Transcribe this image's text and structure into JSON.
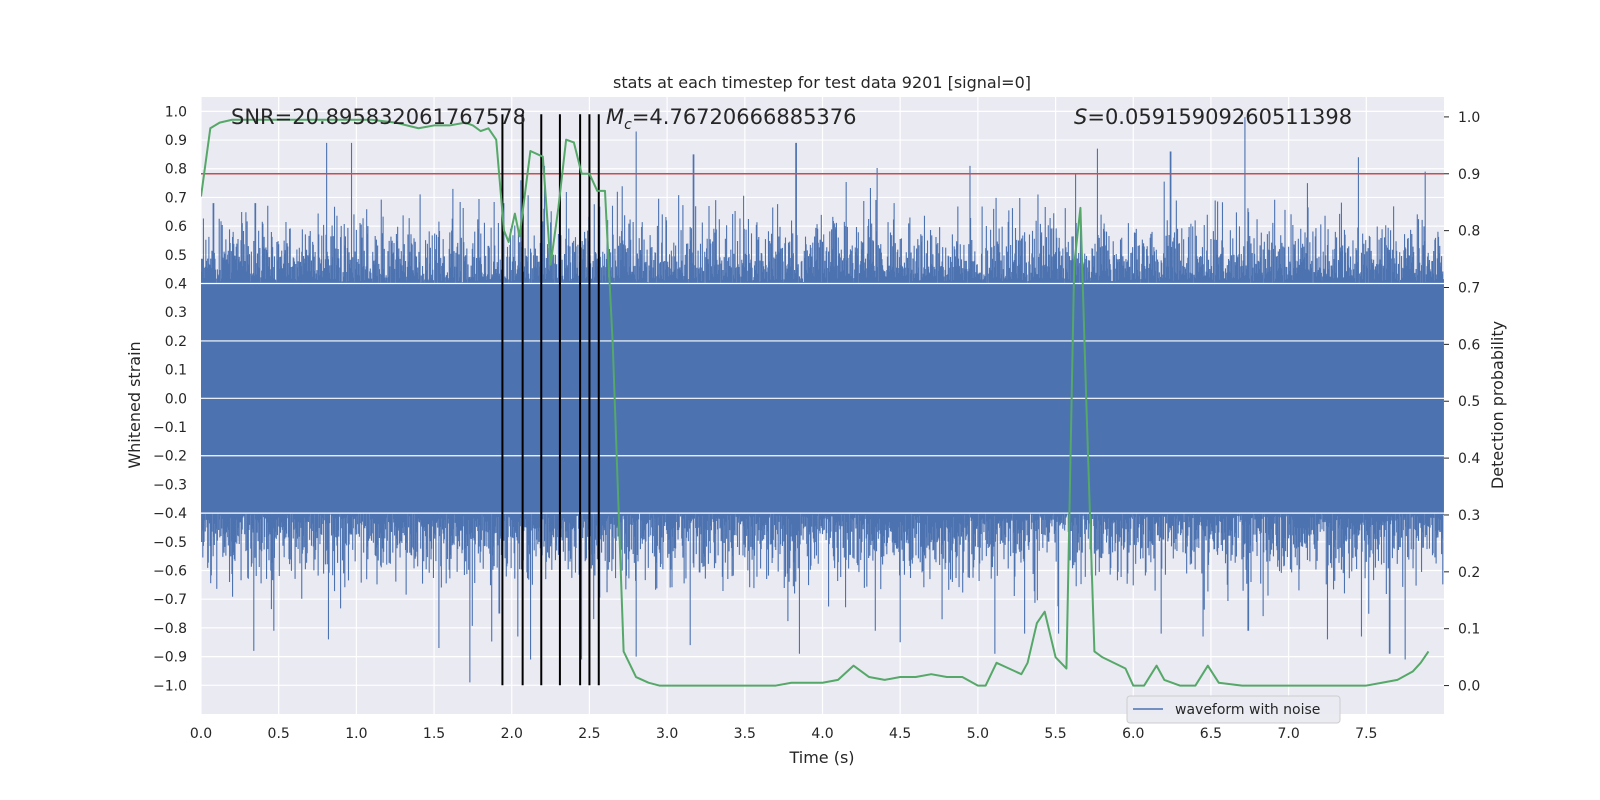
{
  "chart_data": {
    "type": "line",
    "title": "stats at each timestep for test data 9201 [signal=0]",
    "xlabel": "Time (s)",
    "ylabel": "Whitened strain",
    "y2label": "Detection probability",
    "xlim": [
      0.0,
      8.0
    ],
    "ylim": [
      -1.1,
      1.05
    ],
    "y2lim": [
      -0.05,
      1.035
    ],
    "x_ticks": [
      "0.0",
      "0.5",
      "1.0",
      "1.5",
      "2.0",
      "2.5",
      "3.0",
      "3.5",
      "4.0",
      "4.5",
      "5.0",
      "5.5",
      "6.0",
      "6.5",
      "7.0",
      "7.5"
    ],
    "y_ticks": [
      "1.0",
      "0.9",
      "0.8",
      "0.7",
      "0.6",
      "0.5",
      "0.4",
      "0.3",
      "0.2",
      "0.1",
      "0.0",
      "-0.1",
      "-0.2",
      "-0.3",
      "-0.4",
      "-0.5",
      "-0.6",
      "-0.7",
      "-0.8",
      "-0.9",
      "-1.0"
    ],
    "y2_ticks": [
      "1.0",
      "0.9",
      "0.8",
      "0.7",
      "0.6",
      "0.5",
      "0.4",
      "0.3",
      "0.2",
      "0.1",
      "0.0"
    ],
    "annotations": {
      "snr": "SNR=20.895832061767578",
      "mc_symbol": "M",
      "mc_sub": "c",
      "mc_value": "=4.76720666885376",
      "s_symbol": "S",
      "s_value": "=0.05915909260511398"
    },
    "legend": {
      "label": "waveform with noise",
      "location": "lower-right"
    },
    "threshold": {
      "axis": "right",
      "value": 0.9,
      "color": "#c44e52"
    },
    "event_lines": [
      1.94,
      2.07,
      2.19,
      2.31,
      2.44,
      2.5,
      2.56
    ],
    "event_line_range": [
      -1.0,
      0.99
    ],
    "waveform": {
      "name": "waveform with noise",
      "color": "#4c72b0",
      "n_samples": 2048,
      "core_amplitude": 0.4,
      "noise_scale": 0.11,
      "seed": 9201,
      "peaks_pos": [
        [
          0.08,
          0.68
        ],
        [
          0.35,
          0.68
        ],
        [
          0.81,
          0.89
        ],
        [
          0.97,
          0.89
        ],
        [
          1.62,
          0.73
        ],
        [
          1.95,
          0.68
        ],
        [
          2.06,
          0.76
        ],
        [
          2.21,
          0.81
        ],
        [
          2.68,
          0.72
        ],
        [
          2.8,
          0.93
        ],
        [
          3.17,
          0.85
        ],
        [
          3.83,
          0.89
        ],
        [
          4.95,
          0.81
        ],
        [
          5.63,
          0.78
        ],
        [
          5.77,
          0.87
        ],
        [
          6.24,
          0.86
        ],
        [
          6.72,
          0.98
        ],
        [
          7.12,
          0.75
        ],
        [
          7.45,
          0.84
        ],
        [
          7.88,
          0.79
        ]
      ],
      "peaks_neg": [
        [
          0.34,
          -0.88
        ],
        [
          0.47,
          -0.81
        ],
        [
          0.82,
          -0.84
        ],
        [
          1.53,
          -0.87
        ],
        [
          1.73,
          -0.99
        ],
        [
          1.92,
          -0.75
        ],
        [
          2.04,
          -0.83
        ],
        [
          2.12,
          -0.91
        ],
        [
          2.45,
          -0.91
        ],
        [
          2.8,
          -0.9
        ],
        [
          3.15,
          -0.86
        ],
        [
          3.85,
          -0.89
        ],
        [
          4.34,
          -0.81
        ],
        [
          4.5,
          -0.85
        ],
        [
          4.77,
          -0.77
        ],
        [
          5.11,
          -0.89
        ],
        [
          5.3,
          -0.82
        ],
        [
          5.52,
          -0.82
        ],
        [
          6.18,
          -0.82
        ],
        [
          6.45,
          -0.83
        ],
        [
          6.74,
          -0.81
        ],
        [
          7.25,
          -0.84
        ],
        [
          7.47,
          -0.83
        ],
        [
          7.65,
          -0.89
        ],
        [
          7.75,
          -0.91
        ]
      ]
    },
    "probability": {
      "name": "detection probability",
      "color": "#55a868",
      "x": [
        0.0,
        0.06,
        0.12,
        0.2,
        0.3,
        0.5,
        0.7,
        0.9,
        1.0,
        1.1,
        1.25,
        1.4,
        1.5,
        1.6,
        1.7,
        1.75,
        1.8,
        1.85,
        1.9,
        1.95,
        1.98,
        2.02,
        2.05,
        2.12,
        2.2,
        2.25,
        2.3,
        2.35,
        2.4,
        2.45,
        2.5,
        2.55,
        2.6,
        2.65,
        2.72,
        2.8,
        2.88,
        2.95,
        3.1,
        3.3,
        3.5,
        3.7,
        3.8,
        3.9,
        4.0,
        4.1,
        4.2,
        4.3,
        4.4,
        4.5,
        4.6,
        4.7,
        4.8,
        4.9,
        5.0,
        5.05,
        5.12,
        5.2,
        5.28,
        5.32,
        5.38,
        5.43,
        5.5,
        5.57,
        5.62,
        5.66,
        5.7,
        5.75,
        5.8,
        5.95,
        6.0,
        6.07,
        6.15,
        6.2,
        6.3,
        6.4,
        6.48,
        6.55,
        6.7,
        6.9,
        7.1,
        7.3,
        7.5,
        7.6,
        7.7,
        7.8,
        7.85,
        7.9
      ],
      "y": [
        0.86,
        0.98,
        0.99,
        0.995,
        0.995,
        0.995,
        0.995,
        0.995,
        0.995,
        0.995,
        0.99,
        0.98,
        0.985,
        0.985,
        0.99,
        0.985,
        0.975,
        0.98,
        0.96,
        0.8,
        0.78,
        0.83,
        0.79,
        0.94,
        0.93,
        0.74,
        0.84,
        0.96,
        0.955,
        0.9,
        0.9,
        0.87,
        0.87,
        0.6,
        0.06,
        0.015,
        0.005,
        0.0,
        0.0,
        0.0,
        0.0,
        0.0,
        0.005,
        0.005,
        0.005,
        0.01,
        0.035,
        0.015,
        0.01,
        0.015,
        0.015,
        0.02,
        0.015,
        0.015,
        0.0,
        0.0,
        0.04,
        0.03,
        0.02,
        0.04,
        0.11,
        0.13,
        0.05,
        0.03,
        0.74,
        0.84,
        0.48,
        0.06,
        0.05,
        0.03,
        0.0,
        0.0,
        0.035,
        0.01,
        0.0,
        0.0,
        0.035,
        0.005,
        0.0,
        0.0,
        0.0,
        0.0,
        0.0,
        0.005,
        0.01,
        0.025,
        0.04,
        0.06
      ]
    }
  }
}
